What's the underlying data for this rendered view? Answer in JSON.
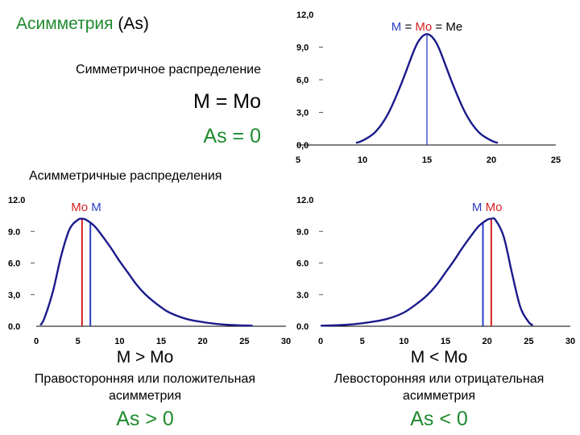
{
  "title": {
    "word": "Асимметрия",
    "abbr": "(As)"
  },
  "symmetric": {
    "label": "Симметричное распределение",
    "equation": "M = Mo",
    "as_value": "As = 0"
  },
  "asymmetric_heading": "Асимметричные распределения",
  "left": {
    "equation": "M > Mo",
    "description_line1": "Правосторонняя или положительная",
    "description_line2": "асимметрия",
    "as_value": "As > 0"
  },
  "right": {
    "equation": "M < Mo",
    "description_line1": "Левосторонняя или отрицательная",
    "description_line2": "асимметрия",
    "as_value": "As < 0"
  },
  "colors": {
    "curve": "#1a1a8c",
    "mean": "#2b3cc4",
    "mode": "#d42020",
    "green": "#1f8a2e"
  },
  "chart_data": [
    {
      "type": "line",
      "title": "",
      "xlabel": "",
      "ylabel": "",
      "xlim": [
        5,
        25
      ],
      "ylim": [
        0,
        12
      ],
      "xticks": [
        "5",
        "10",
        "15",
        "20",
        "25"
      ],
      "yticks": [
        "0,0",
        "3,0",
        "6,0",
        "9,0",
        "12,0"
      ],
      "grid": false,
      "series": [
        {
          "x": [
            9.5,
            10,
            11,
            12,
            13,
            14,
            14.5,
            15,
            15.5,
            16,
            17,
            18,
            19,
            20,
            20.5
          ],
          "y": [
            0.2,
            0.4,
            1.2,
            2.9,
            5.6,
            8.7,
            9.8,
            10.2,
            9.8,
            8.7,
            5.6,
            2.9,
            1.2,
            0.4,
            0.2
          ]
        }
      ],
      "markers": [
        {
          "x": 15,
          "parts": [
            {
              "text": "M",
              "color": "#2b3cc4"
            },
            {
              "text": " = ",
              "color": "#000000"
            },
            {
              "text": "Mo",
              "color": "#d42020"
            },
            {
              "text": " = ",
              "color": "#000000"
            },
            {
              "text": "Me",
              "color": "#000000"
            }
          ]
        }
      ]
    },
    {
      "type": "line",
      "title": "",
      "xlabel": "",
      "ylabel": "",
      "xlim": [
        0,
        30
      ],
      "ylim": [
        0,
        12
      ],
      "xticks": [
        "0",
        "5",
        "10",
        "15",
        "20",
        "25",
        "30"
      ],
      "yticks": [
        "0.0",
        "3,0",
        "6.0",
        "9.0",
        "12.0"
      ],
      "grid": false,
      "series": [
        {
          "x": [
            0.5,
            1,
            2,
            3,
            4,
            5,
            5.5,
            6,
            7,
            8,
            9,
            10,
            11,
            12,
            13,
            14,
            15,
            16,
            18,
            20,
            22,
            24,
            26
          ],
          "y": [
            0.1,
            0.8,
            3.3,
            6.7,
            9.2,
            10.1,
            10.2,
            10.1,
            9.5,
            8.5,
            7.4,
            6.2,
            5.1,
            4.0,
            3.1,
            2.4,
            1.8,
            1.3,
            0.7,
            0.4,
            0.2,
            0.1,
            0.05
          ]
        }
      ],
      "mode_x": 5.5,
      "mean_x": 6.5,
      "markers": [
        {
          "parts": [
            {
              "text": "Mo",
              "color": "#d42020"
            },
            {
              "text": " ",
              "color": "#000000"
            },
            {
              "text": "M",
              "color": "#2b3cc4"
            }
          ]
        }
      ]
    },
    {
      "type": "line",
      "title": "",
      "xlabel": "",
      "ylabel": "",
      "xlim": [
        0,
        30
      ],
      "ylim": [
        0,
        12
      ],
      "xticks": [
        "0",
        "5",
        "10",
        "15",
        "20",
        "25",
        "30"
      ],
      "yticks": [
        "0.0",
        "3.0",
        "6.0",
        "9.0",
        "12.0"
      ],
      "grid": false,
      "series": [
        {
          "x": [
            0,
            2,
            4,
            6,
            8,
            10,
            12,
            13,
            14,
            15,
            16,
            17,
            18,
            19,
            20,
            20.5,
            21,
            22,
            23,
            24,
            25,
            25.5
          ],
          "y": [
            0.05,
            0.1,
            0.2,
            0.4,
            0.7,
            1.3,
            2.4,
            3.1,
            4.0,
            5.1,
            6.2,
            7.4,
            8.5,
            9.5,
            10.1,
            10.2,
            10.1,
            8.5,
            5.0,
            1.8,
            0.4,
            0.1
          ]
        }
      ],
      "mode_x": 20.5,
      "mean_x": 19.5,
      "markers": [
        {
          "parts": [
            {
              "text": "M",
              "color": "#2b3cc4"
            },
            {
              "text": "  ",
              "color": "#000000"
            },
            {
              "text": "Mo",
              "color": "#d42020"
            }
          ]
        }
      ]
    }
  ]
}
